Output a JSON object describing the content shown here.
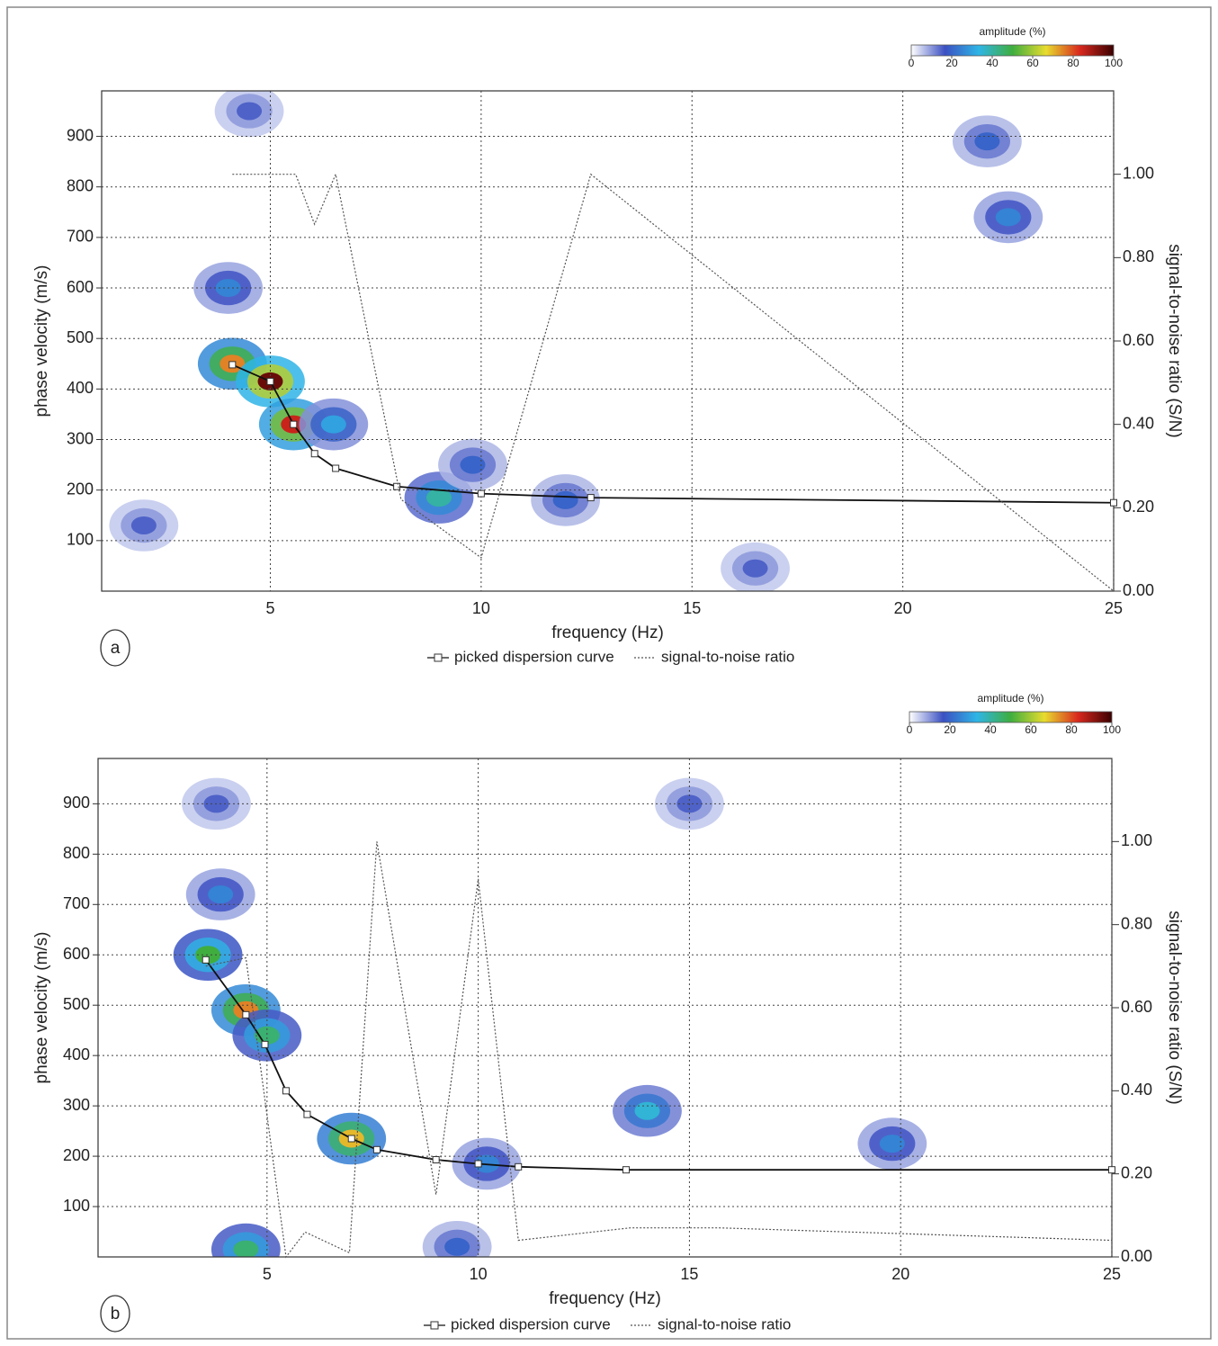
{
  "chart_data": [
    {
      "type": "line",
      "panel_label": "a",
      "x_label": "frequency (Hz)",
      "y_label": "phase velocity (m/s)",
      "y2_label": "signal-to-noise ratio (S/N)",
      "xlim": [
        1,
        25
      ],
      "xticks": [
        5,
        10,
        15,
        20,
        25
      ],
      "ylim": [
        0,
        990
      ],
      "yticks": [
        100,
        200,
        300,
        400,
        500,
        600,
        700,
        800,
        900
      ],
      "y2lim": [
        0,
        1.2
      ],
      "y2ticks": [
        {
          "value": 0,
          "label": "0.00"
        },
        {
          "value": 0.2,
          "label": "0.20"
        },
        {
          "value": 0.4,
          "label": "0.40"
        },
        {
          "value": 0.6,
          "label": "0.60"
        },
        {
          "value": 0.8,
          "label": "0.80"
        },
        {
          "value": 1,
          "label": "1.00"
        }
      ],
      "grid": true,
      "colorbar": {
        "label": "amplitude (%)",
        "ticks": [
          0,
          20,
          40,
          60,
          80,
          100
        ],
        "colors": [
          "#ffffff",
          "#3b50c2",
          "#2fb5e6",
          "#3fae3f",
          "#e8dc2e",
          "#d8281e",
          "#3a0000"
        ]
      },
      "amplitude": [
        {
          "x": 4.1,
          "y": 450,
          "value": 75
        },
        {
          "x": 5.0,
          "y": 415,
          "value": 95
        },
        {
          "x": 5.55,
          "y": 330,
          "value": 85
        },
        {
          "x": 4.0,
          "y": 600,
          "value": 25
        },
        {
          "x": 6.5,
          "y": 330,
          "value": 30
        },
        {
          "x": 9.0,
          "y": 185,
          "value": 40
        },
        {
          "x": 9.8,
          "y": 250,
          "value": 20
        },
        {
          "x": 22.5,
          "y": 740,
          "value": 25
        },
        {
          "x": 22,
          "y": 890,
          "value": 20
        },
        {
          "x": 2.0,
          "y": 130,
          "value": 15
        },
        {
          "x": 16.5,
          "y": 45,
          "value": 15
        },
        {
          "x": 12,
          "y": 180,
          "value": 20
        },
        {
          "x": 4.5,
          "y": 950,
          "value": 15
        }
      ],
      "series": [
        {
          "name": "picked dispersion curve",
          "color": "#111111",
          "marker": "square",
          "style": "solid",
          "x": [
            4.1,
            5.0,
            5.55,
            6.05,
            6.55,
            8.0,
            10.0,
            12.6,
            25
          ],
          "values": [
            448,
            415,
            330,
            272,
            243,
            207,
            193,
            185,
            175
          ]
        },
        {
          "name": "signal-to-noise ratio",
          "color": "#555555",
          "style": "dotted",
          "axis": "y2",
          "x": [
            4.1,
            5.6,
            6.05,
            6.55,
            8.1,
            10.0,
            12.6,
            25
          ],
          "values": [
            1.0,
            1.0,
            0.88,
            1.0,
            0.22,
            0.08,
            1.0,
            0.0
          ]
        }
      ]
    },
    {
      "type": "line",
      "panel_label": "b",
      "x_label": "frequency (Hz)",
      "y_label": "phase velocity (m/s)",
      "y2_label": "signal-to-noise ratio (S/N)",
      "xlim": [
        1,
        25
      ],
      "xticks": [
        5,
        10,
        15,
        20,
        25
      ],
      "ylim": [
        0,
        990
      ],
      "yticks": [
        100,
        200,
        300,
        400,
        500,
        600,
        700,
        800,
        900
      ],
      "y2lim": [
        0,
        1.2
      ],
      "y2ticks": [
        {
          "value": 0,
          "label": "0.00"
        },
        {
          "value": 0.2,
          "label": "0.20"
        },
        {
          "value": 0.4,
          "label": "0.40"
        },
        {
          "value": 0.6,
          "label": "0.60"
        },
        {
          "value": 0.8,
          "label": "0.80"
        },
        {
          "value": 1,
          "label": "1.00"
        }
      ],
      "grid": true,
      "colorbar": {
        "label": "amplitude (%)",
        "ticks": [
          0,
          20,
          40,
          60,
          80,
          100
        ],
        "colors": [
          "#ffffff",
          "#3b50c2",
          "#2fb5e6",
          "#3fae3f",
          "#e8dc2e",
          "#d8281e",
          "#3a0000"
        ]
      },
      "amplitude": [
        {
          "x": 3.6,
          "y": 600,
          "value": 50
        },
        {
          "x": 4.5,
          "y": 490,
          "value": 75
        },
        {
          "x": 5.0,
          "y": 440,
          "value": 45
        },
        {
          "x": 3.9,
          "y": 720,
          "value": 25
        },
        {
          "x": 3.8,
          "y": 900,
          "value": 15
        },
        {
          "x": 7.0,
          "y": 235,
          "value": 70
        },
        {
          "x": 14,
          "y": 290,
          "value": 35
        },
        {
          "x": 19.8,
          "y": 225,
          "value": 25
        },
        {
          "x": 10.2,
          "y": 185,
          "value": 25
        },
        {
          "x": 4.5,
          "y": 15,
          "value": 45
        },
        {
          "x": 9.5,
          "y": 20,
          "value": 20
        },
        {
          "x": 15,
          "y": 900,
          "value": 15
        }
      ],
      "series": [
        {
          "name": "picked dispersion curve",
          "color": "#111111",
          "marker": "square",
          "style": "solid",
          "x": [
            3.55,
            4.5,
            4.95,
            5.45,
            5.95,
            7.0,
            7.6,
            9.0,
            10.0,
            10.95,
            13.5,
            25
          ],
          "values": [
            590,
            481,
            422,
            330,
            283,
            235,
            213,
            193,
            185,
            179,
            173,
            173
          ]
        },
        {
          "name": "signal-to-noise ratio",
          "color": "#555555",
          "style": "dotted",
          "axis": "y2",
          "x": [
            3.55,
            4.5,
            5.45,
            5.9,
            6.95,
            7.6,
            9.0,
            10.0,
            10.95,
            13.6,
            15.7,
            25
          ],
          "values": [
            0.7,
            0.72,
            0.0,
            0.06,
            0.01,
            1.0,
            0.15,
            0.91,
            0.04,
            0.07,
            0.07,
            0.04
          ]
        }
      ]
    }
  ]
}
